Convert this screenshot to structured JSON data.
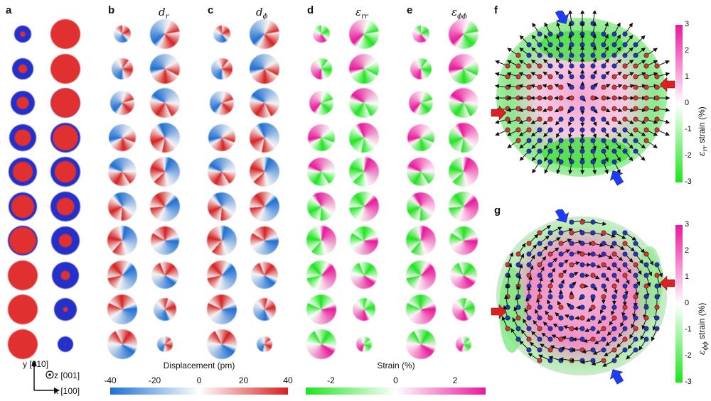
{
  "panels": {
    "a": "a",
    "b": "b",
    "c": "c",
    "d": "d",
    "e": "e",
    "f": "f",
    "g": "g"
  },
  "titles": {
    "dr": "d",
    "dr_sub": "r",
    "dphi": "d",
    "dphi_sub": "ϕ",
    "err": "ε",
    "err_sub": "rr",
    "ephiphi": "ε",
    "ephiphi_sub": "ϕϕ"
  },
  "axes": {
    "y": "y [010]",
    "z": "z [001]",
    "x": "x [100]"
  },
  "colorbars": {
    "displacement": {
      "title": "Displacement (pm)",
      "ticks": [
        "-40",
        "-20",
        "0",
        "20",
        "40"
      ],
      "colors": [
        "#1f6fd1",
        "#ffffff",
        "#d62020"
      ]
    },
    "strain": {
      "title": "Strain (%)",
      "ticks": [
        "-2",
        "0",
        "2"
      ],
      "colors": [
        "#1ee41e",
        "#ffffff",
        "#e8189a"
      ]
    },
    "f": {
      "ticks": [
        "3",
        "2",
        "1",
        "0",
        "-1",
        "-2",
        "-3"
      ],
      "title_symbol": "ε",
      "title_sub": "rr",
      "title_rest": "strain (%)"
    },
    "g": {
      "ticks": [
        "3",
        "2",
        "1",
        "0",
        "-1",
        "-2",
        "-3"
      ],
      "title_symbol": "ε",
      "title_sub": "ϕϕ",
      "title_rest": "strain (%)"
    }
  },
  "colors": {
    "atom_blue": "#2430c8",
    "atom_red": "#e03030",
    "arrow_blue": "#1e3cff",
    "arrow_red": "#e02020"
  }
}
